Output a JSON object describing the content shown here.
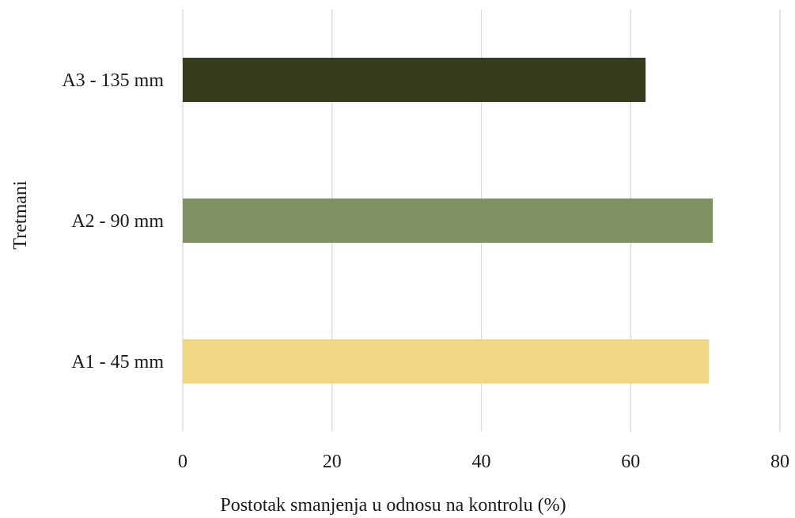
{
  "chart_data": {
    "type": "bar",
    "orientation": "horizontal",
    "categories": [
      "A1 - 45 mm",
      "A2 - 90 mm",
      "A3 - 135 mm"
    ],
    "values": [
      70.5,
      71,
      62
    ],
    "colors": [
      "#f0d784",
      "#7d9163",
      "#363d1f"
    ],
    "xlabel": "Postotak smanjenja u odnosu na kontrolu (%)",
    "ylabel": "Tretmani",
    "xlim": [
      0,
      80
    ],
    "xticks": [
      0,
      20,
      40,
      60,
      80
    ],
    "grid": "vertical",
    "legend": "none"
  }
}
